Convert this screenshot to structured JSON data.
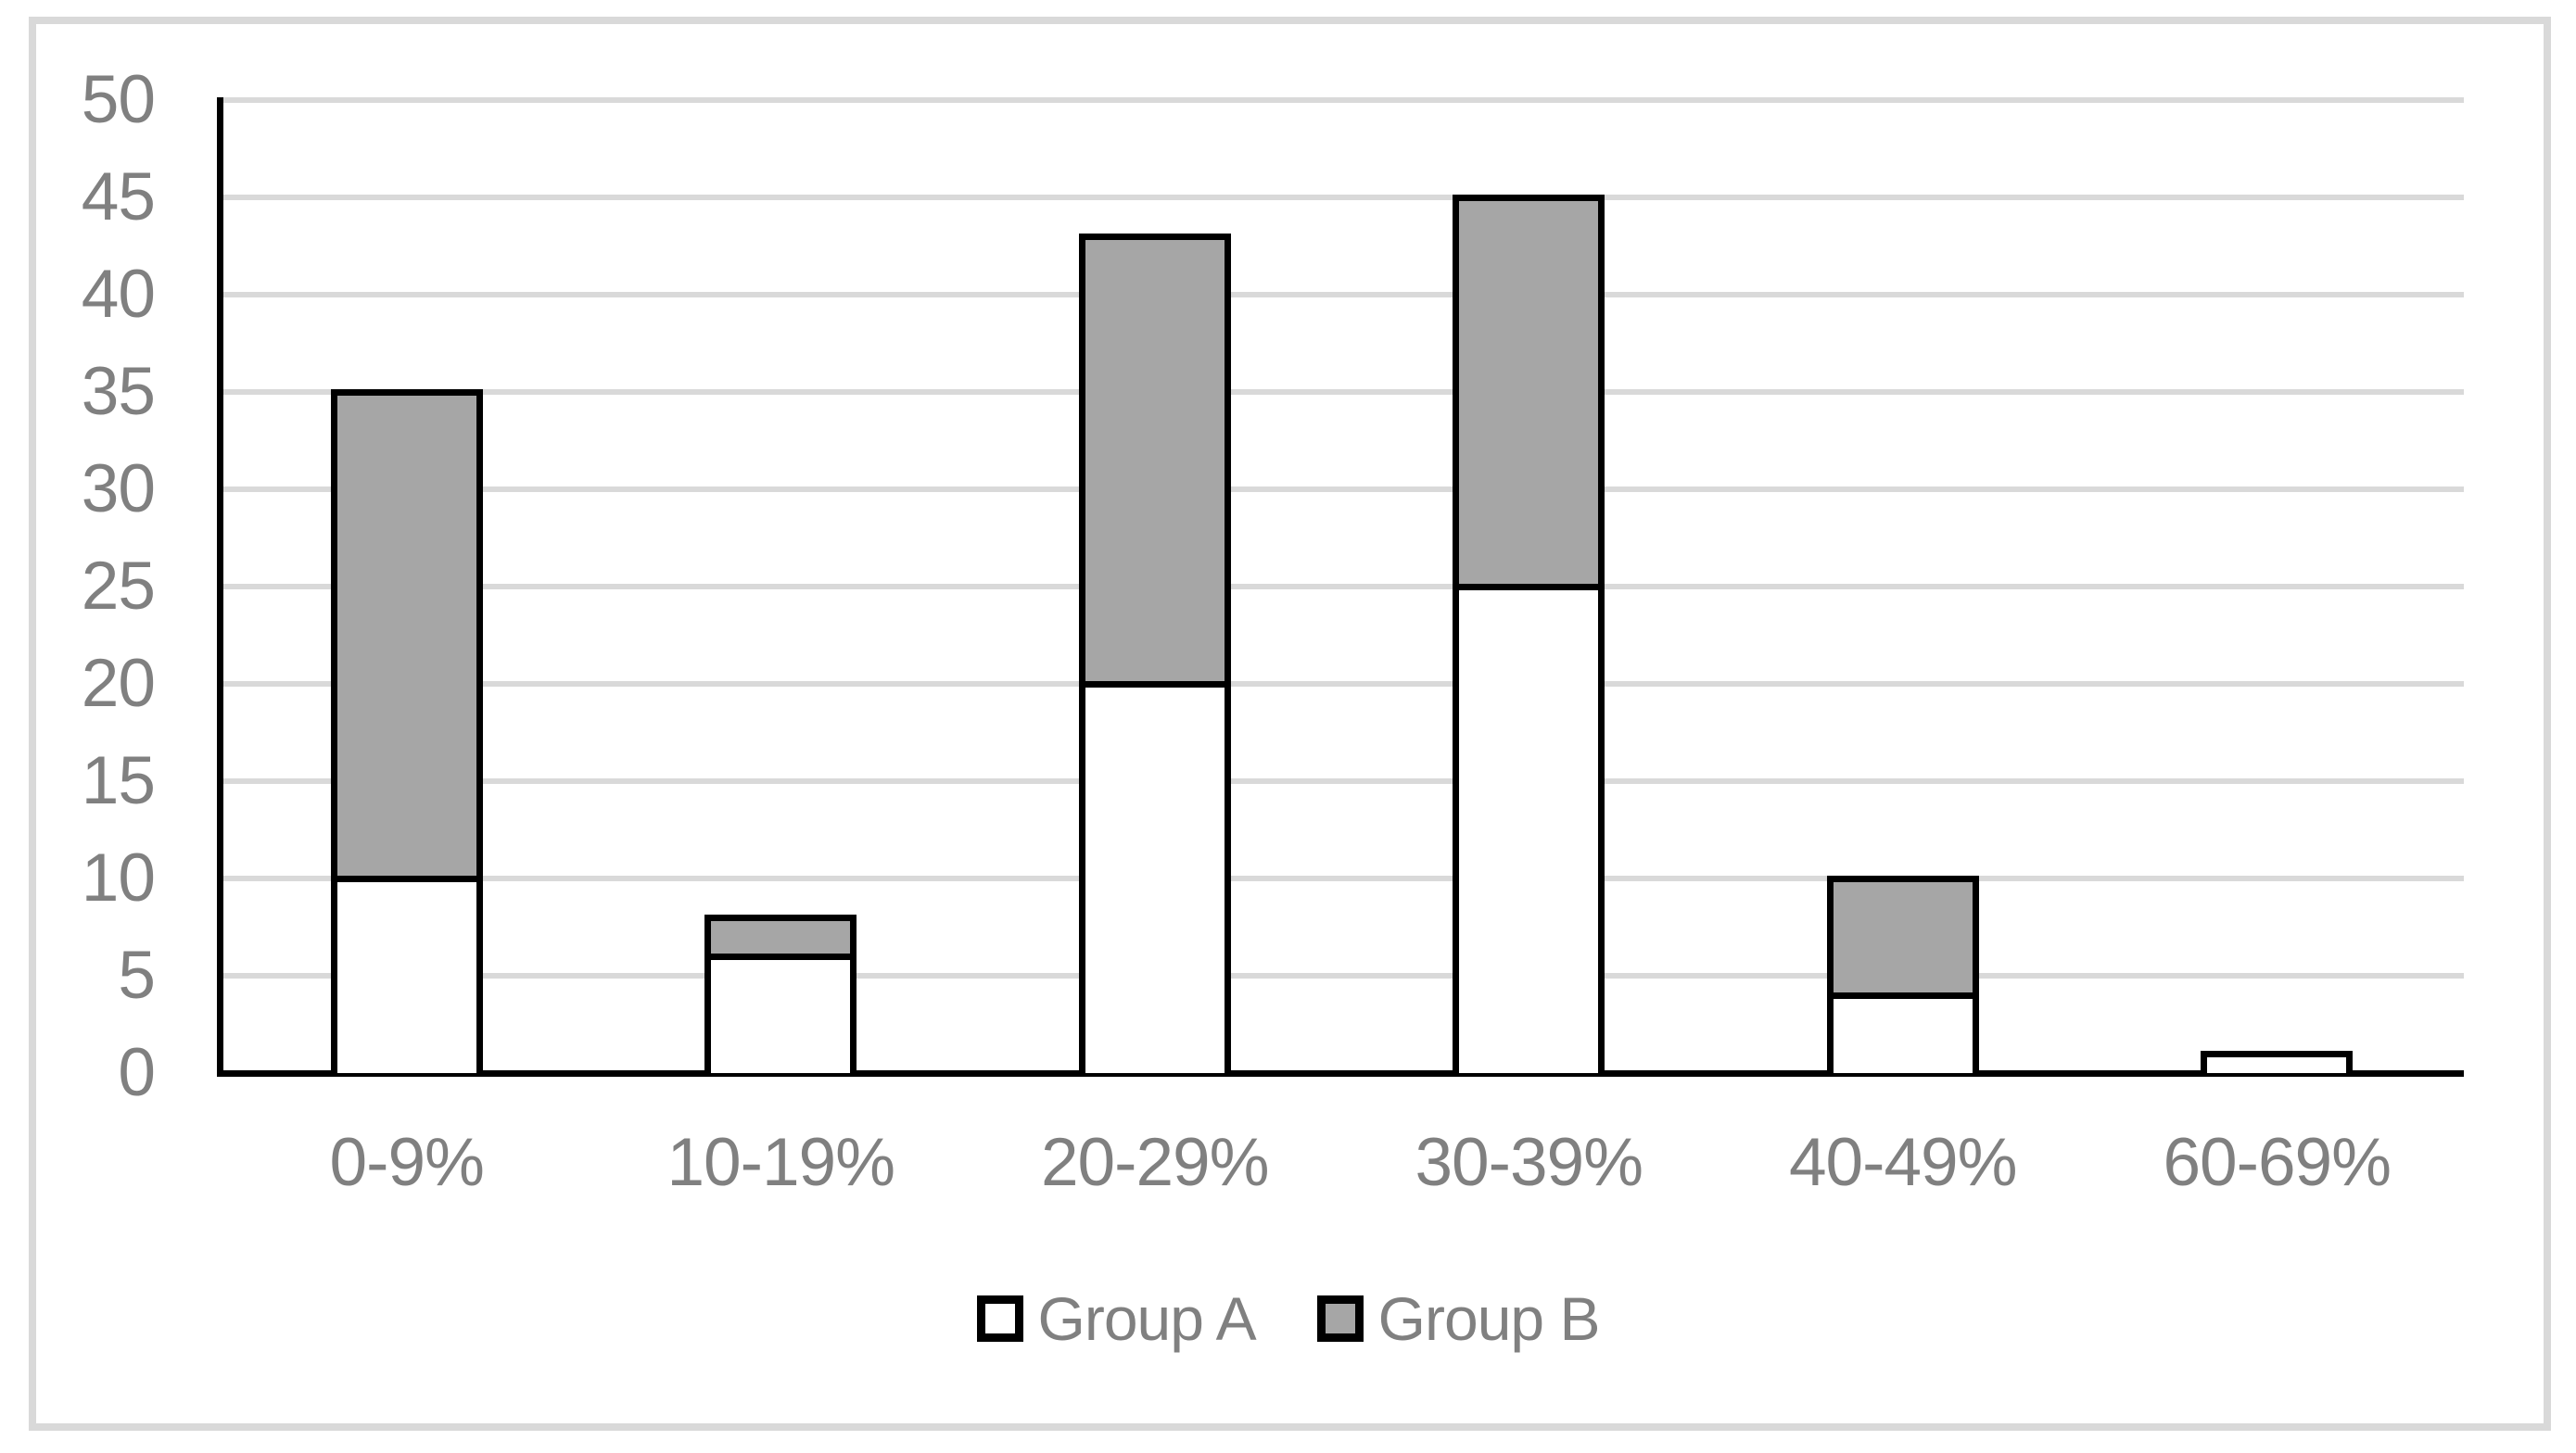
{
  "chart_data": {
    "type": "bar",
    "stacked": true,
    "title": "",
    "xlabel": "",
    "ylabel": "",
    "categories": [
      "0-9%",
      "10-19%",
      "20-29%",
      "30-39%",
      "40-49%",
      "60-69%"
    ],
    "series": [
      {
        "name": "Group A",
        "values": [
          10,
          6,
          20,
          25,
          4,
          1
        ],
        "fill": "#FFFFFF"
      },
      {
        "name": "Group B",
        "values": [
          25,
          2,
          23,
          20,
          6,
          0
        ],
        "fill": "#A6A6A6"
      }
    ],
    "ylim": [
      0,
      50
    ],
    "yticks": [
      0,
      5,
      10,
      15,
      20,
      25,
      30,
      35,
      40,
      45,
      50
    ],
    "grid": true,
    "legend_position": "bottom",
    "colors": {
      "bar_border": "#000000",
      "group_b_fill": "#A6A6A6",
      "group_a_fill": "#FFFFFF",
      "label_text": "#808080",
      "gridline": "#D9D9D9",
      "frame_border": "#D9D9D9"
    }
  }
}
